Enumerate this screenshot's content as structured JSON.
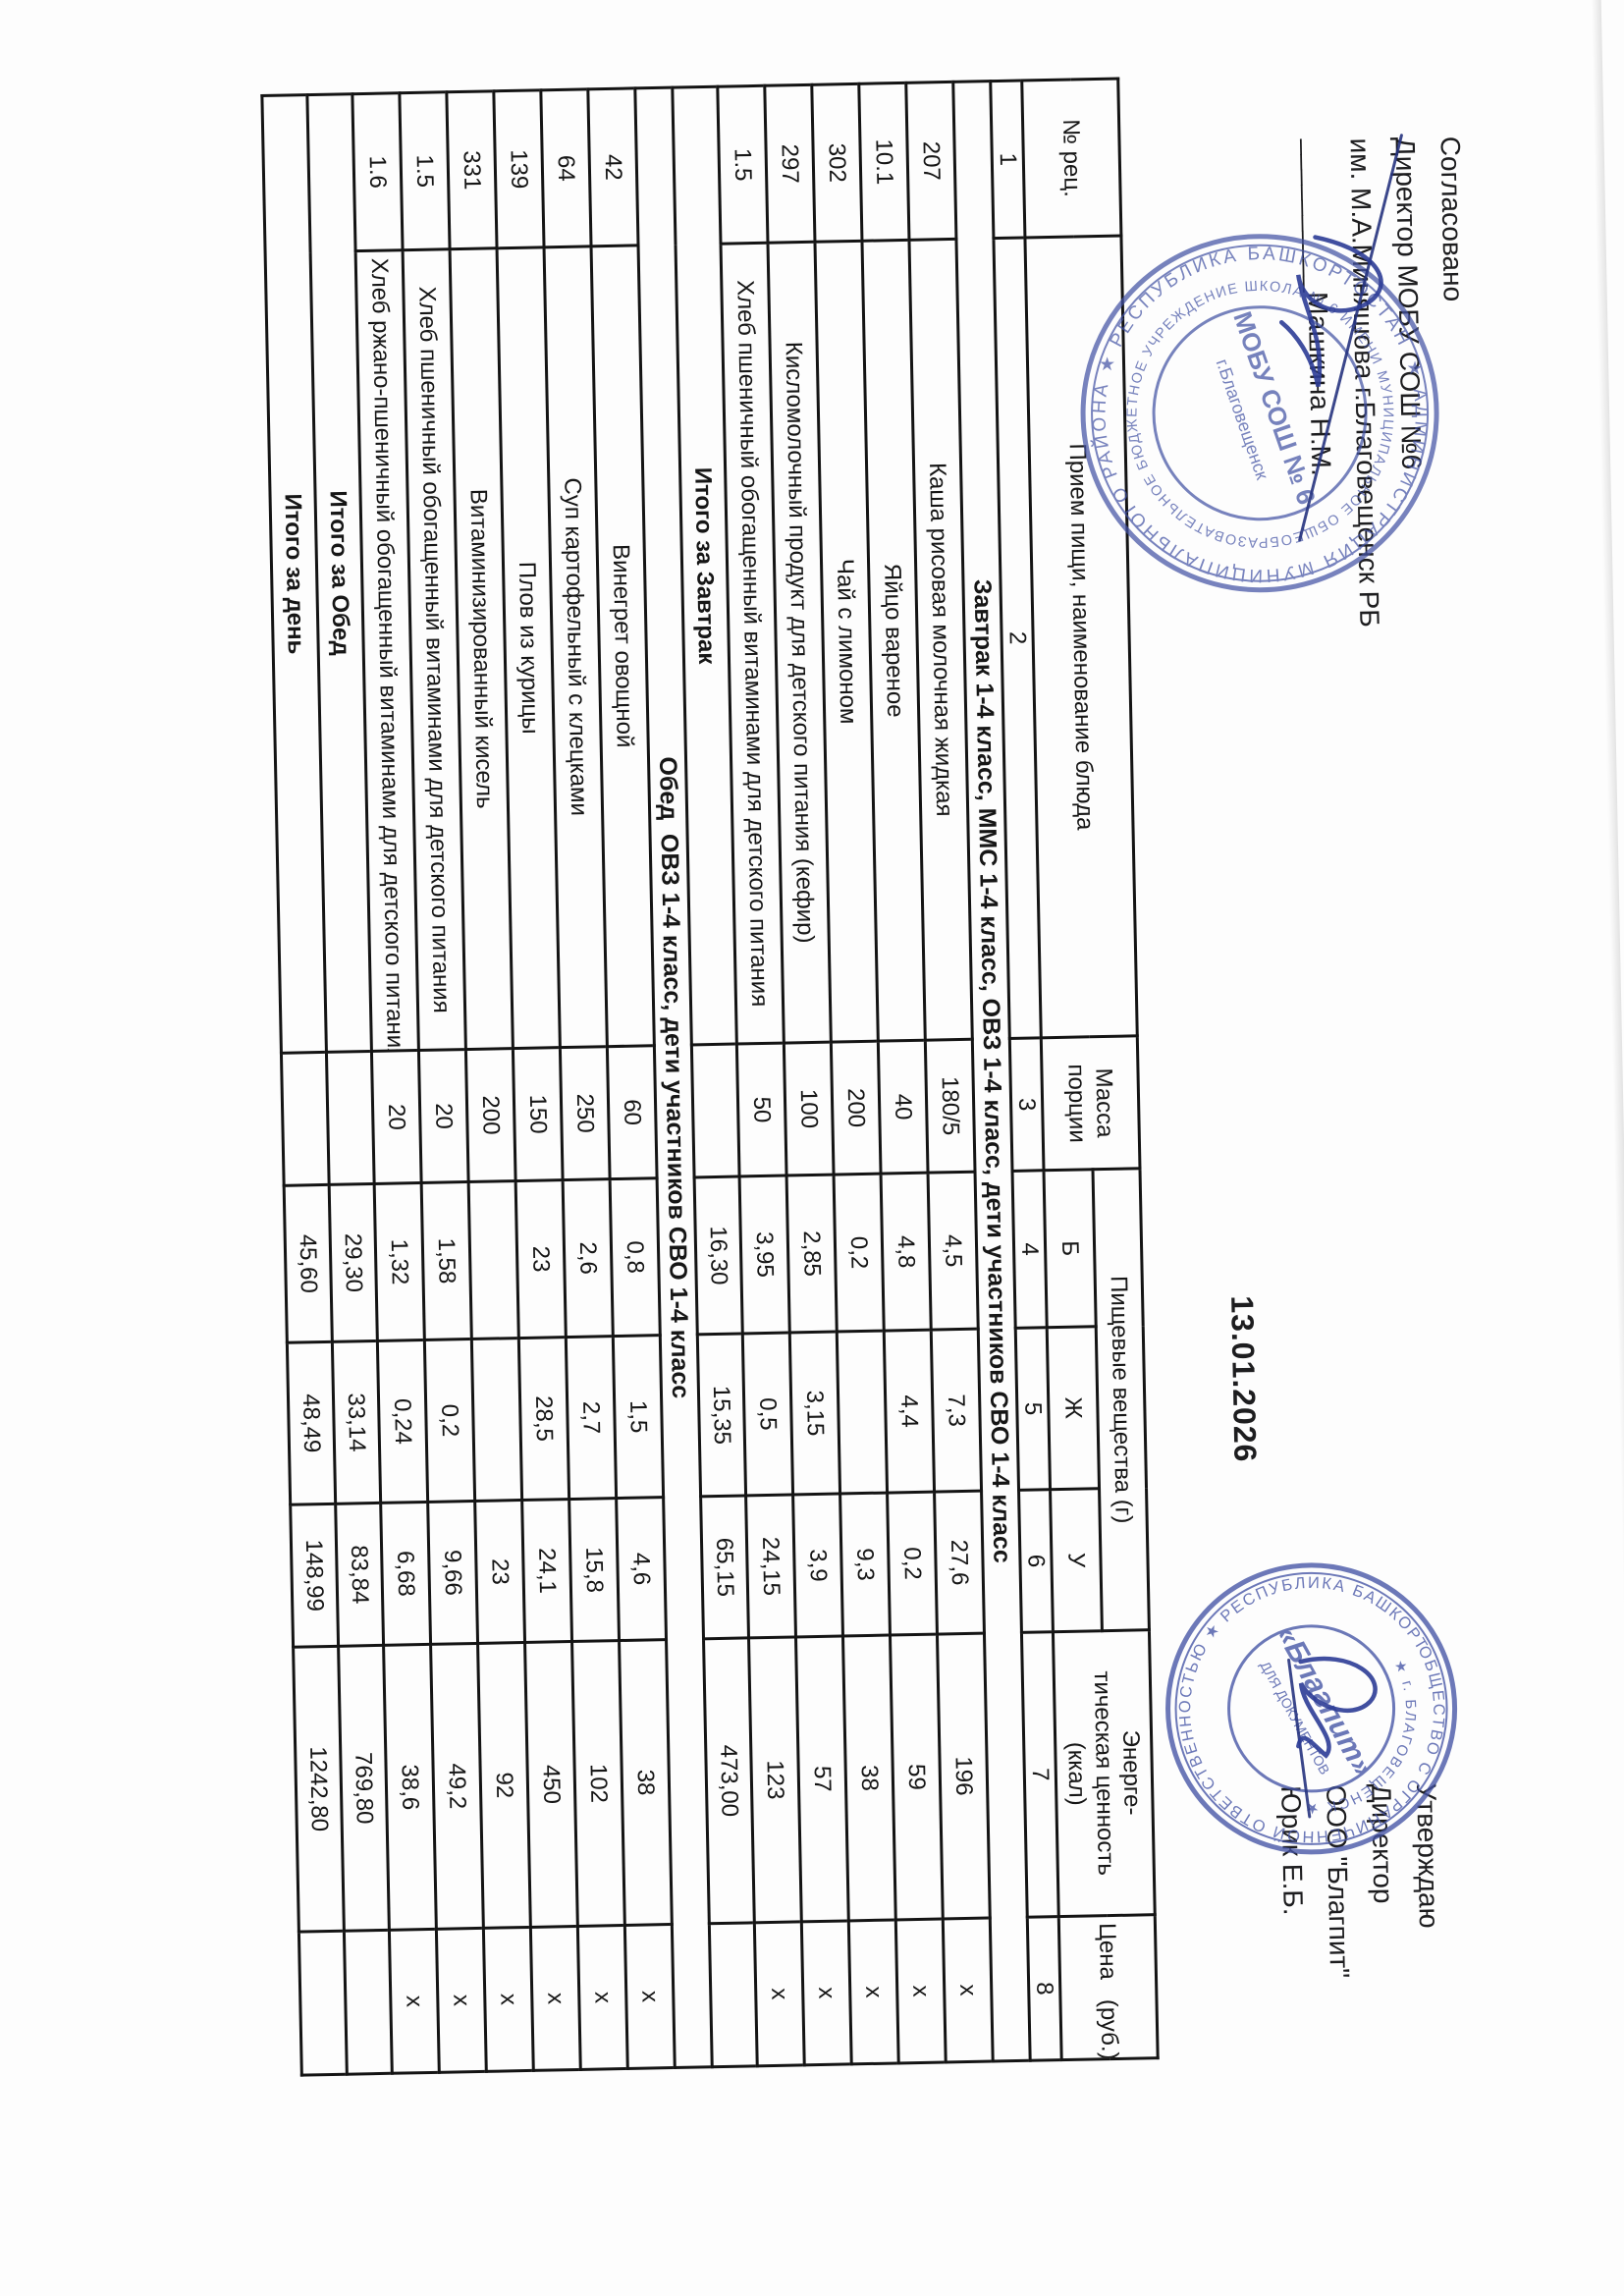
{
  "approval_left": {
    "line1": "Согласовано",
    "line2": "Директор МОБУ СОШ №6",
    "line3": "им. М.А.Миняшова г.Благовещенск РБ",
    "line4": "__________Машкина Н.М."
  },
  "approval_right": {
    "line1": "Утверждаю",
    "line2": "Директор",
    "line3": "ООО \"Благпит\"",
    "line4": "Юрик Е.Б."
  },
  "date": "13.01.2026",
  "table": {
    "headers": {
      "recipe_no": "№ рец.",
      "meal": "Прием пищи, наименование блюда",
      "mass": "Масса порции",
      "nutrients": "Пищевые вещества (г)",
      "protein": "Б",
      "fat": "Ж",
      "carbs": "У",
      "energy": "Энерге-\nтическая ценность\n(ккал)",
      "price": "Цена   (руб.)"
    },
    "column_index": [
      "1",
      "2",
      "3",
      "4",
      "5",
      "6",
      "7",
      "8"
    ],
    "sections": [
      {
        "title": "Завтрак 1-4 класс, ММС 1-4 класс, ОВЗ 1-4 класс, дети участников СВО 1-4 класс",
        "rows": [
          {
            "num": "207",
            "name": "Каша рисовая молочная жидкая",
            "mass": "180/5",
            "b": "4,5",
            "zh": "7,3",
            "u": "27,6",
            "kcal": "196",
            "price": "х"
          },
          {
            "num": "10.1",
            "name": "Яйцо вареное",
            "mass": "40",
            "b": "4,8",
            "zh": "4,4",
            "u": "0,2",
            "kcal": "59",
            "price": "х"
          },
          {
            "num": "302",
            "name": "Чай с лимоном",
            "mass": "200",
            "b": "0,2",
            "zh": "",
            "u": "9,3",
            "kcal": "38",
            "price": "х"
          },
          {
            "num": "297",
            "name": "Кисломолочный продукт для детского питания (кефир)",
            "mass": "100",
            "b": "2,85",
            "zh": "3,15",
            "u": "3,9",
            "kcal": "57",
            "price": "х"
          },
          {
            "num": "1.5",
            "name": "Хлеб пшеничный обогащенный витаминами для детского питания",
            "mass": "50",
            "b": "3,95",
            "zh": "0,5",
            "u": "24,15",
            "kcal": "123",
            "price": "х"
          }
        ],
        "total": {
          "label": "Итого за Завтрак",
          "mass": "",
          "b": "16,30",
          "zh": "15,35",
          "u": "65,15",
          "kcal": "473,00",
          "price": ""
        }
      },
      {
        "title": "Обед  ОВЗ 1-4 класс, дети участников СВО 1-4 класс",
        "rows": [
          {
            "num": "42",
            "name": "Винегрет овощной",
            "mass": "60",
            "b": "0,8",
            "zh": "1,5",
            "u": "4,6",
            "kcal": "38",
            "price": "х"
          },
          {
            "num": "64",
            "name": "Суп картофельный с клецками",
            "mass": "250",
            "b": "2,6",
            "zh": "2,7",
            "u": "15,8",
            "kcal": "102",
            "price": "х"
          },
          {
            "num": "139",
            "name": "Плов из курицы",
            "mass": "150",
            "b": "23",
            "zh": "28,5",
            "u": "24,1",
            "kcal": "450",
            "price": "х"
          },
          {
            "num": "331",
            "name": "Витаминизированный кисель",
            "mass": "200",
            "b": "",
            "zh": "",
            "u": "23",
            "kcal": "92",
            "price": "х"
          },
          {
            "num": "1.5",
            "name": "Хлеб пшеничный обогащенный витаминами для детского питания",
            "mass": "20",
            "b": "1,58",
            "zh": "0,2",
            "u": "9,66",
            "kcal": "49,2",
            "price": "х"
          },
          {
            "num": "1.6",
            "name": "Хлеб ржано-пшеничный обогащенный витаминами для детского питания",
            "mass": "20",
            "b": "1,32",
            "zh": "0,24",
            "u": "6,68",
            "kcal": "38,6",
            "price": "х"
          }
        ],
        "total": {
          "label": "Итого за Обед",
          "mass": "",
          "b": "29,30",
          "zh": "33,14",
          "u": "83,84",
          "kcal": "769,80",
          "price": ""
        }
      }
    ],
    "grand_total": {
      "label": "Итого за день",
      "mass": "",
      "b": "45,60",
      "zh": "48,49",
      "u": "148,99",
      "kcal": "1242,80",
      "price": ""
    }
  },
  "stamps": {
    "color": "#4353a4",
    "school": {
      "ring_outer": "★ АДМИНИСТРАЦИЯ МУНИЦИПАЛЬНОГО РАЙОНА ★ РЕСПУБЛИКА БАШКОРТОСТАН ★ ГОРОД БЛАГОВЕЩЕНСК",
      "ring_inner": "МУНИЦИПАЛЬНОЕ ОБЩЕОБРАЗОВАТЕЛЬНОЕ БЮДЖЕТНОЕ УЧРЕЖДЕНИЕ ШКОЛА № 6 ИМЕНИ М.А.МИНЯШОВА",
      "center_line1": "МОБУ СОШ № 6",
      "center_line2": "г.Благовещенск"
    },
    "blagpit": {
      "ring_outer": "ОБЩЕСТВО С ОГРАНИЧЕННОЙ ОТВЕТСТВЕННОСТЬЮ ★ РЕСПУБЛИКА БАШКОРТОСТАН ★",
      "ring_inner": "★ г. БЛАГОВЕЩЕНСК ★",
      "center_line1": "«Благпит»",
      "center_line2": "ДЛЯ ДОКУМЕНТОВ"
    }
  }
}
